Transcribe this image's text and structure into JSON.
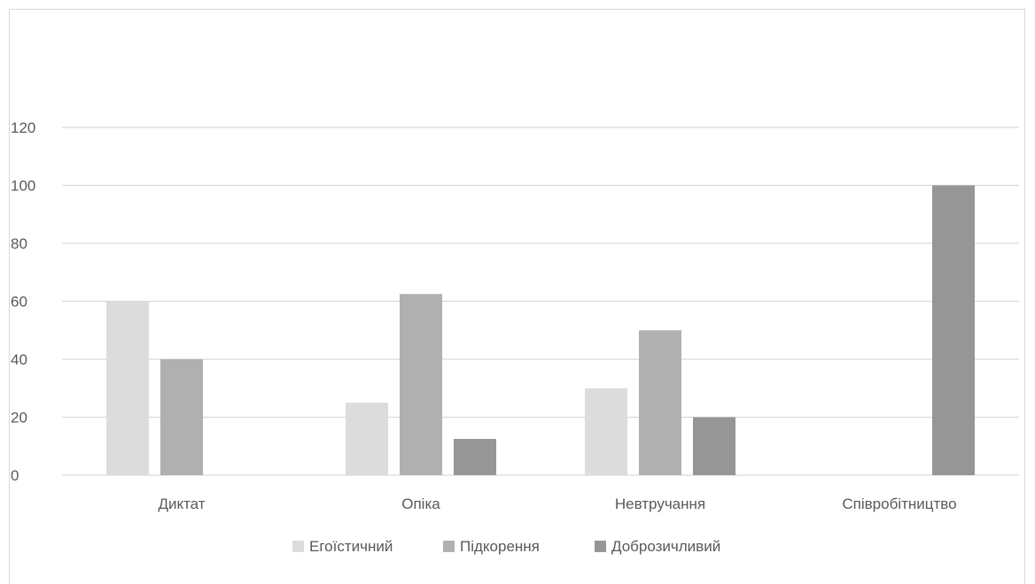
{
  "chart_data": {
    "type": "bar",
    "categories": [
      "Диктат",
      "Опіка",
      "Невтручання",
      "Співробітництво"
    ],
    "series": [
      {
        "name": "Егоїстичний",
        "values": [
          60,
          25,
          30,
          0
        ],
        "color": "#dcdcdc"
      },
      {
        "name": "Підкорення",
        "values": [
          40,
          62.5,
          50,
          0
        ],
        "color": "#b0b0b0"
      },
      {
        "name": "Доброзичливий",
        "values": [
          0,
          12.5,
          20,
          100
        ],
        "color": "#969696"
      }
    ],
    "ylim": [
      0,
      120
    ],
    "yticks": [
      0,
      20,
      40,
      60,
      80,
      100,
      120
    ],
    "grid": true,
    "legend_position": "bottom",
    "gridline_color": "#d9d9d9",
    "text_color": "#595959"
  }
}
